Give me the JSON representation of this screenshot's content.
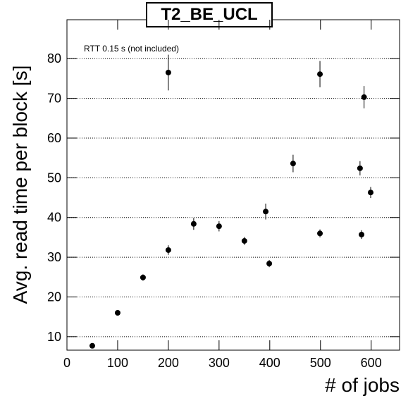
{
  "chart_data": {
    "type": "scatter",
    "title": "T2_BE_UCL",
    "annotation": "RTT 0.15 s (not included)",
    "x_label": "# of jobs",
    "y_label": "Avg. read time per block [s]",
    "series": [
      {
        "color": "#000000",
        "x": [
          50,
          100,
          150,
          200,
          200,
          250,
          300,
          350,
          392,
          399,
          446,
          499,
          499,
          578,
          586,
          581,
          599
        ],
        "values": [
          7.7,
          16.0,
          24.9,
          31.8,
          76.5,
          38.4,
          37.8,
          34.1,
          41.5,
          28.4,
          53.6,
          76.1,
          36.0,
          52.4,
          70.3,
          35.7,
          46.3
        ],
        "errors": [
          0.3,
          0.4,
          0.8,
          1.2,
          4.5,
          1.5,
          1.3,
          1.0,
          2.0,
          0.9,
          2.2,
          3.3,
          1.0,
          1.8,
          2.8,
          1.1,
          1.4
        ]
      }
    ],
    "xlim": [
      0,
      656
    ],
    "ylim": [
      6.6,
      89.8
    ],
    "xticks": [
      0,
      100,
      200,
      300,
      400,
      500,
      600
    ],
    "yticks": [
      10,
      20,
      30,
      40,
      50,
      60,
      70,
      80
    ],
    "grid": true
  }
}
